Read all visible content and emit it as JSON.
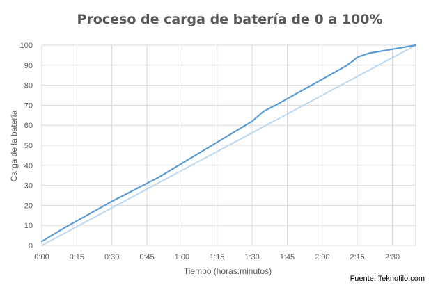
{
  "chart_data": {
    "type": "line",
    "title": "Proceso de carga de batería de 0 a 100%",
    "xlabel": "Tiempo (horas:minutos)",
    "ylabel": "Carga de la batería",
    "source": "Fuente: Teknofilo.com",
    "x_ticks": [
      "0:00",
      "0:15",
      "0:30",
      "0:45",
      "1:00",
      "1:15",
      "1:30",
      "1:45",
      "2:00",
      "2:15",
      "2:30"
    ],
    "x_range_minutes": [
      0,
      160
    ],
    "ylim": [
      0,
      100
    ],
    "y_ticks": [
      0,
      10,
      20,
      30,
      40,
      50,
      60,
      70,
      80,
      90,
      100
    ],
    "grid": true,
    "colors": {
      "series1": "#5b9bd5",
      "series2": "#bdd7ee",
      "grid": "#d9d9d9",
      "text": "#595959"
    },
    "series": [
      {
        "x_minutes": [
          0,
          5,
          10,
          20,
          30,
          40,
          45,
          50,
          60,
          70,
          80,
          90,
          93,
          95,
          100,
          110,
          120,
          130,
          133,
          135,
          140,
          150,
          160
        ],
        "values": [
          2,
          5.5,
          9,
          15.5,
          22,
          28,
          31,
          34,
          41,
          48,
          55,
          62,
          65,
          67,
          70,
          76.5,
          83,
          89.5,
          92,
          94,
          96,
          98,
          100
        ]
      },
      {
        "x_minutes": [
          0,
          160
        ],
        "values": [
          0,
          100
        ]
      }
    ]
  }
}
